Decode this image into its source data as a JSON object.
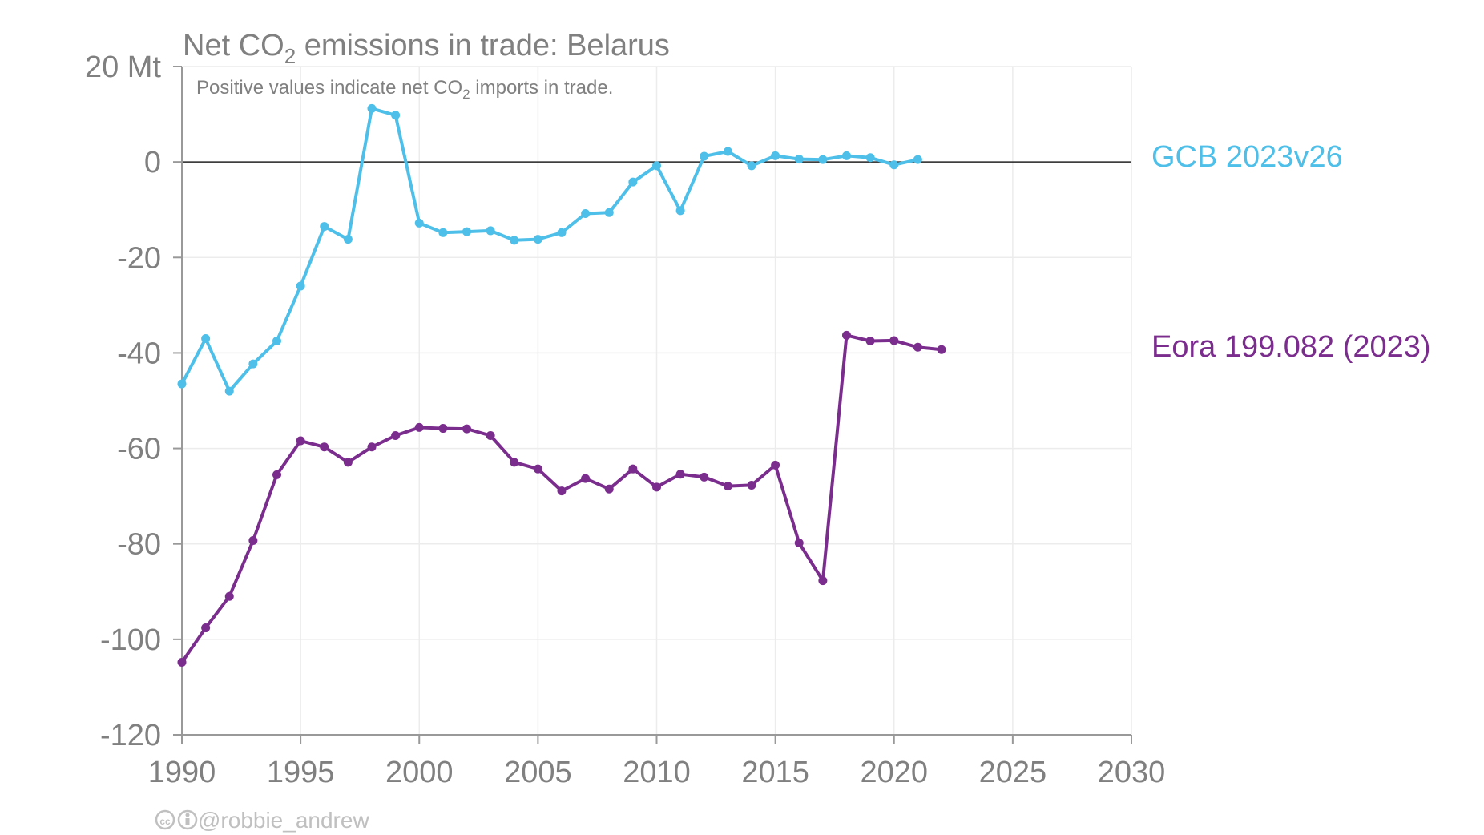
{
  "chart_data": {
    "type": "line",
    "title_parts": [
      "Net CO",
      "2",
      " emissions in trade: Belarus"
    ],
    "subtitle_parts": [
      "Positive values indicate net CO",
      "2",
      " imports in trade."
    ],
    "xlabel": "",
    "ylabel": "",
    "xlim": [
      1990,
      2030
    ],
    "ylim": [
      -120,
      20
    ],
    "x_ticks": [
      1990,
      1995,
      2000,
      2005,
      2010,
      2015,
      2020,
      2025,
      2030
    ],
    "x_tick_labels": [
      "1990",
      "1995",
      "2000",
      "2005",
      "2010",
      "2015",
      "2020",
      "2025",
      "2030"
    ],
    "y_ticks": [
      20,
      0,
      -20,
      -40,
      -60,
      -80,
      -100,
      -120
    ],
    "y_tick_labels": [
      "20 Mt",
      "0",
      "-20",
      "-40",
      "-60",
      "-80",
      "-100",
      "-120"
    ],
    "grid": true,
    "zero_line": true,
    "legend_placement": "right of plot, next to each series end",
    "series": [
      {
        "name": "GCB 2023v26",
        "color": "#4dbfe8",
        "x": [
          1990,
          1991,
          1992,
          1993,
          1994,
          1995,
          1996,
          1997,
          1998,
          1999,
          2000,
          2001,
          2002,
          2003,
          2004,
          2005,
          2006,
          2007,
          2008,
          2009,
          2010,
          2011,
          2012,
          2013,
          2014,
          2015,
          2016,
          2017,
          2018,
          2019,
          2020,
          2021
        ],
        "values": [
          -46.5,
          -37,
          -48,
          -42.3,
          -37.5,
          -26,
          -13.5,
          -16.2,
          11.2,
          9.8,
          -12.8,
          -14.8,
          -14.6,
          -14.4,
          -16.4,
          -16.2,
          -14.8,
          -10.8,
          -10.6,
          -4.2,
          -0.8,
          -10.2,
          1.2,
          2.2,
          -0.8,
          1.3,
          0.6,
          0.5,
          1.3,
          0.9,
          -0.6,
          0.5
        ]
      },
      {
        "name": "Eora 199.082 (2023)",
        "color": "#7b2d8e",
        "x": [
          1990,
          1991,
          1992,
          1993,
          1994,
          1995,
          1996,
          1997,
          1998,
          1999,
          2000,
          2001,
          2002,
          2003,
          2004,
          2005,
          2006,
          2007,
          2008,
          2009,
          2010,
          2011,
          2012,
          2013,
          2014,
          2015,
          2016,
          2017,
          2018,
          2019,
          2020,
          2021,
          2022
        ],
        "values": [
          -104.8,
          -97.6,
          -91,
          -79.3,
          -65.5,
          -58.4,
          -59.7,
          -62.9,
          -59.7,
          -57.3,
          -55.6,
          -55.8,
          -55.9,
          -57.3,
          -62.9,
          -64.3,
          -68.9,
          -66.3,
          -68.5,
          -64.3,
          -68.1,
          -65.4,
          -66,
          -67.9,
          -67.7,
          -63.5,
          -79.8,
          -87.7,
          -36.3,
          -37.5,
          -37.4,
          -38.8,
          -39.3
        ]
      }
    ],
    "credit": "@robbie_andrew"
  }
}
